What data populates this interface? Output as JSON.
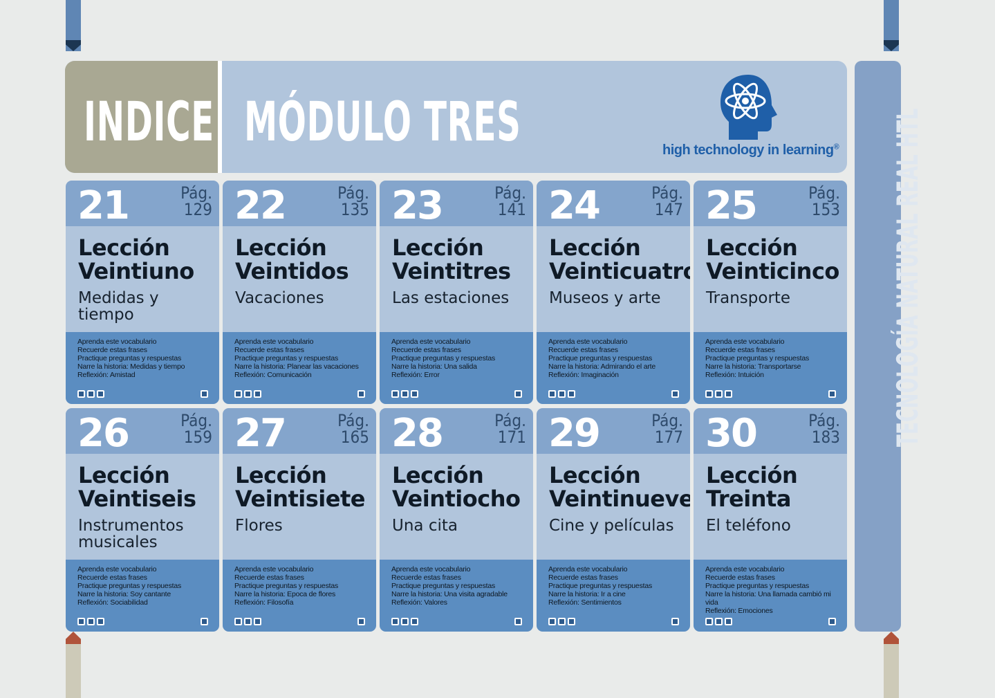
{
  "header": {
    "indice": "INDICE",
    "module": "MÓDULO TRES",
    "logo_text": "high technology in learning",
    "logo_mark": "®"
  },
  "side": {
    "text": "TECNOLOGÍA NATURAL REAL HTL"
  },
  "colors": {
    "header_bg": "#b1c5dc",
    "indice_bg": "#a9a893",
    "card_top": "#84a5cc",
    "card_bottom": "#5b8dc1",
    "sidebar": "#85a1c6",
    "logo_blue": "#1f5fa8"
  },
  "cards": [
    {
      "num": "21",
      "pag_label": "Pág.",
      "pag": "129",
      "lesson": "Lección",
      "name": "Veintiuno",
      "topic": "Medidas y tiempo",
      "items": [
        "Aprenda este vocabulario",
        "Recuerde estas frases",
        "Practique preguntas y respuestas",
        "Narre la historia: Medidas y tiempo",
        "Reflexión: Amistad"
      ]
    },
    {
      "num": "22",
      "pag_label": "Pág.",
      "pag": "135",
      "lesson": "Lección",
      "name": "Veintidos",
      "topic": "Vacaciones",
      "items": [
        "Aprenda este vocabulario",
        "Recuerde estas frases",
        "Practique preguntas y respuestas",
        "Narre la historia: Planear las vacaciones",
        "Reflexión: Comunicación"
      ]
    },
    {
      "num": "23",
      "pag_label": "Pág.",
      "pag": "141",
      "lesson": "Lección",
      "name": "Veintitres",
      "topic": "Las estaciones",
      "items": [
        "Aprenda este vocabulario",
        "Recuerde estas frases",
        "Practique preguntas y respuestas",
        "Narre la historia: Una salida",
        "Reflexión: Error"
      ]
    },
    {
      "num": "24",
      "pag_label": "Pág.",
      "pag": "147",
      "lesson": "Lección",
      "name": "Veinticuatro",
      "topic": "Museos y arte",
      "items": [
        "Aprenda este vocabulario",
        "Recuerde estas frases",
        "Practique preguntas y respuestas",
        "Narre la historia: Admirando el arte",
        "Reflexión: Imaginación"
      ]
    },
    {
      "num": "25",
      "pag_label": "Pág.",
      "pag": "153",
      "lesson": "Lección",
      "name": "Veinticinco",
      "topic": "Transporte",
      "items": [
        "Aprenda este vocabulario",
        "Recuerde estas frases",
        "Practique preguntas y respuestas",
        "Narre la historia: Transportarse",
        "Reflexión: Intuición"
      ]
    },
    {
      "num": "26",
      "pag_label": "Pág.",
      "pag": "159",
      "lesson": "Lección",
      "name": "Veintiseis",
      "topic": "Instrumentos musicales",
      "items": [
        "Aprenda este vocabulario",
        "Recuerde estas frases",
        "Practique preguntas y respuestas",
        "Narre la historia: Soy cantante",
        "Reflexión: Sociabilidad"
      ]
    },
    {
      "num": "27",
      "pag_label": "Pág.",
      "pag": "165",
      "lesson": "Lección",
      "name": "Veintisiete",
      "topic": "Flores",
      "items": [
        "Aprenda este vocabulario",
        "Recuerde estas frases",
        "Practique preguntas y respuestas",
        "Narre la historia: Epoca de flores",
        "Reflexión: Filosofía"
      ]
    },
    {
      "num": "28",
      "pag_label": "Pág.",
      "pag": "171",
      "lesson": "Lección",
      "name": "Veintiocho",
      "topic": "Una cita",
      "items": [
        "Aprenda este vocabulario",
        "Recuerde estas frases",
        "Practique preguntas y respuestas",
        "Narre la historia: Una visita agradable",
        "Reflexión: Valores"
      ]
    },
    {
      "num": "29",
      "pag_label": "Pág.",
      "pag": "177",
      "lesson": "Lección",
      "name": "Veintinueve",
      "topic": "Cine y películas",
      "items": [
        "Aprenda este vocabulario",
        "Recuerde estas frases",
        "Practique preguntas y respuestas",
        "Narre la historia: Ir a cine",
        "Reflexión: Sentimientos"
      ]
    },
    {
      "num": "30",
      "pag_label": "Pág.",
      "pag": "183",
      "lesson": "Lección",
      "name": "Treinta",
      "topic": "El teléfono",
      "items": [
        "Aprenda este vocabulario",
        "Recuerde estas frases",
        "Practique preguntas y respuestas",
        "Narre la historia: Una llamada cambió mi vida",
        "Reflexión: Emociones"
      ]
    }
  ]
}
